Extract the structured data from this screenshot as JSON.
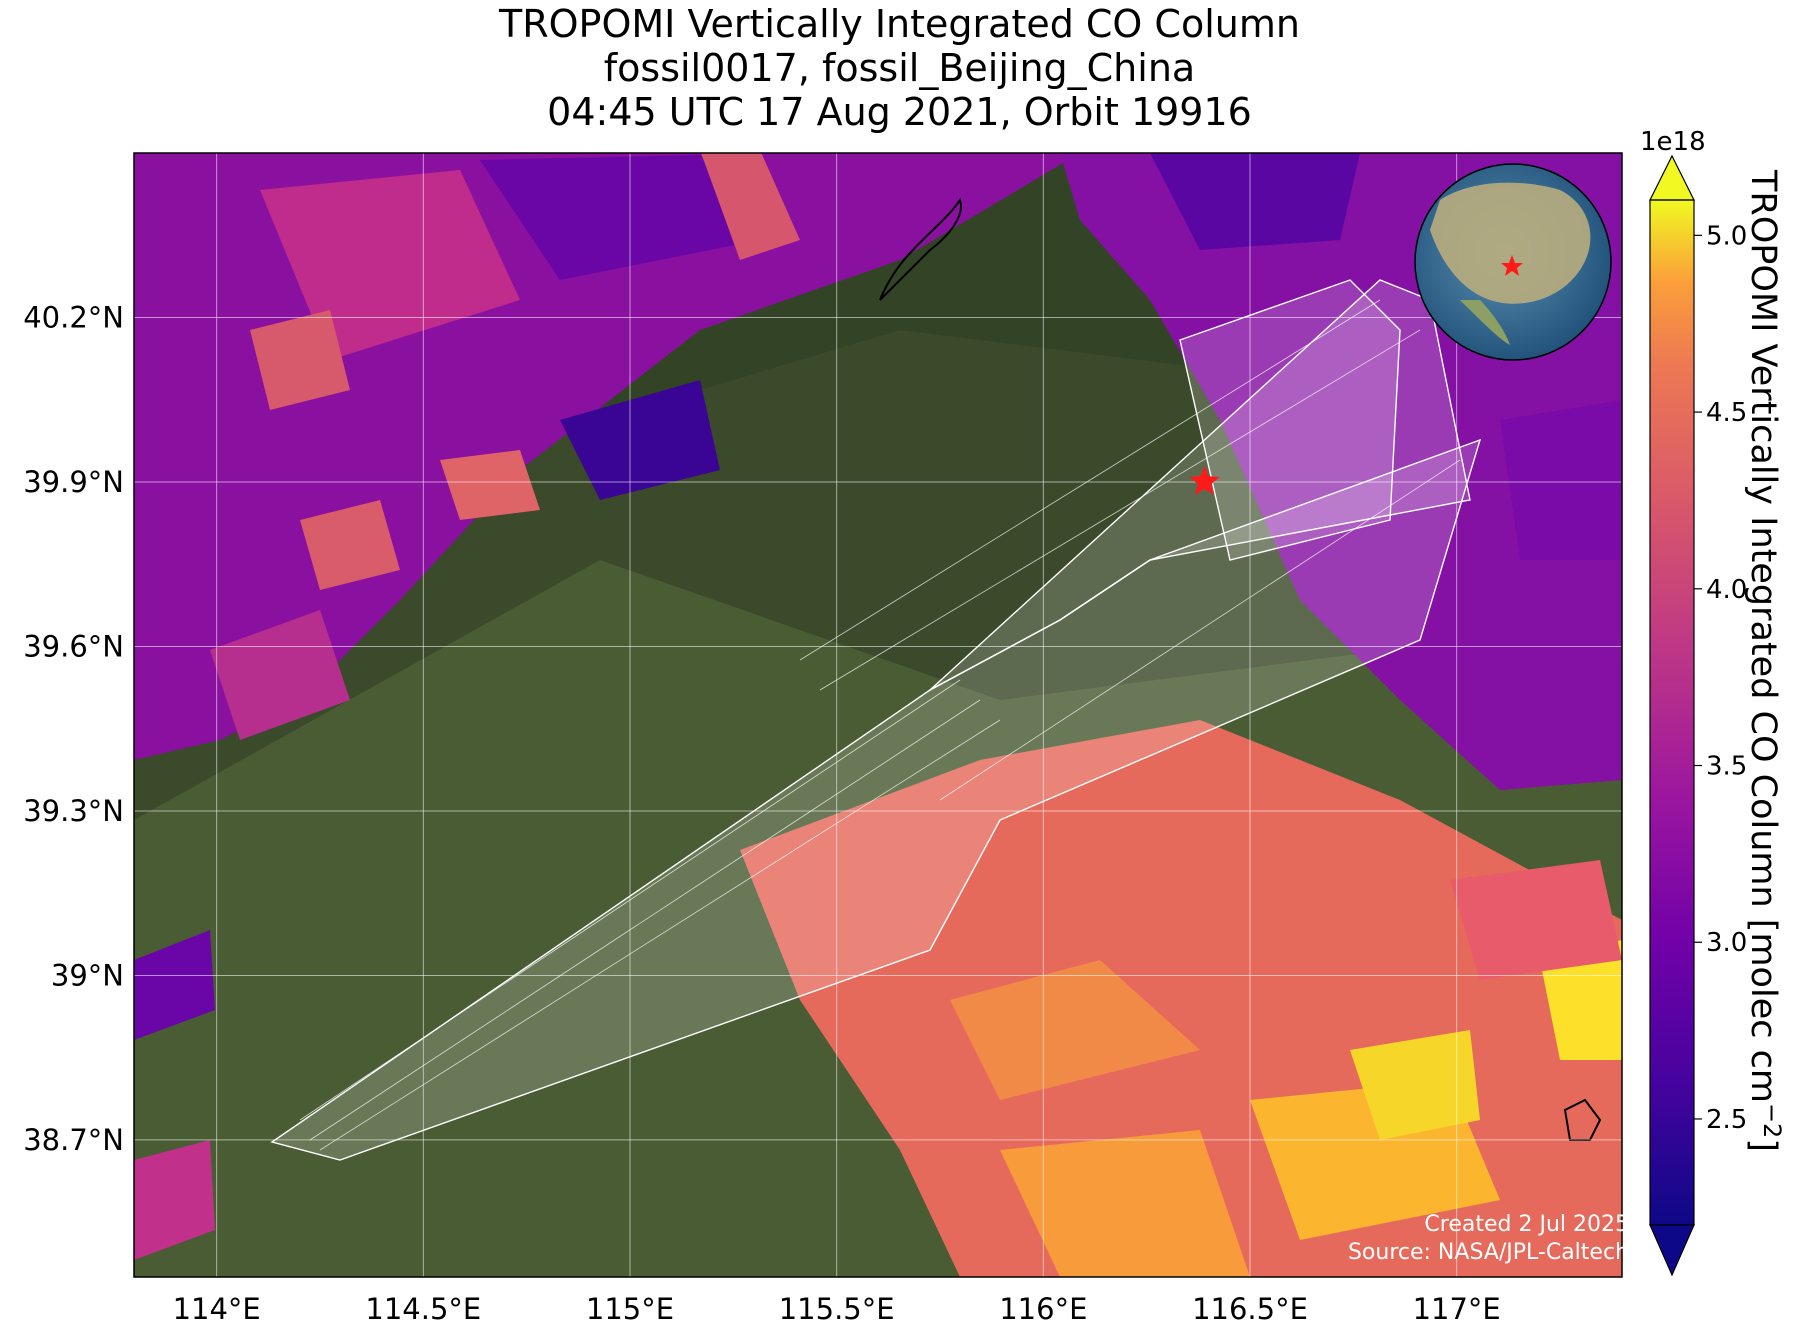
{
  "title": {
    "line1": "TROPOMI Vertically Integrated CO Column",
    "line2": "fossil0017, fossil_Beijing_China",
    "line3": "04:45 UTC 17 Aug 2021, Orbit 19916"
  },
  "map": {
    "lon_range": [
      113.8,
      117.4
    ],
    "lat_range": [
      38.45,
      40.5
    ],
    "lon_ticks": [
      "114°E",
      "114.5°E",
      "115°E",
      "115.5°E",
      "116°E",
      "116.5°E",
      "117°E"
    ],
    "lon_tick_values": [
      114.0,
      114.5,
      115.0,
      115.5,
      116.0,
      116.5,
      117.0
    ],
    "lat_ticks": [
      "40.2°N",
      "39.9°N",
      "39.6°N",
      "39.3°N",
      "39°N",
      "38.7°N"
    ],
    "lat_tick_values": [
      40.2,
      39.9,
      39.6,
      39.3,
      39.0,
      38.7
    ],
    "target_marker": {
      "name": "fossil_Beijing_China",
      "lon": 116.39,
      "lat": 39.9,
      "color": "#ff1a1a"
    },
    "grid": true,
    "overlay_color": "#ffffff",
    "inset": "orthographic globe centered on East Asia with red star at target"
  },
  "colorbar": {
    "label": "TROPOMI Vertically Integrated CO Column [molec cm$^{-2}$]",
    "label_display": "TROPOMI Vertically Integrated CO Column [molec cm",
    "label_sup": "−2",
    "label_end": "]",
    "exponent": "1e18",
    "ticks": [
      "2.5",
      "3.0",
      "3.5",
      "4.0",
      "4.5",
      "5.0"
    ],
    "tick_values": [
      2.5,
      3.0,
      3.5,
      4.0,
      4.5,
      5.0
    ],
    "range": [
      2.2,
      5.1
    ],
    "colormap": "plasma",
    "extend": "both"
  },
  "credits": {
    "created": "Created 2 Jul 2025",
    "source": "Source: NASA/JPL-Caltech"
  }
}
